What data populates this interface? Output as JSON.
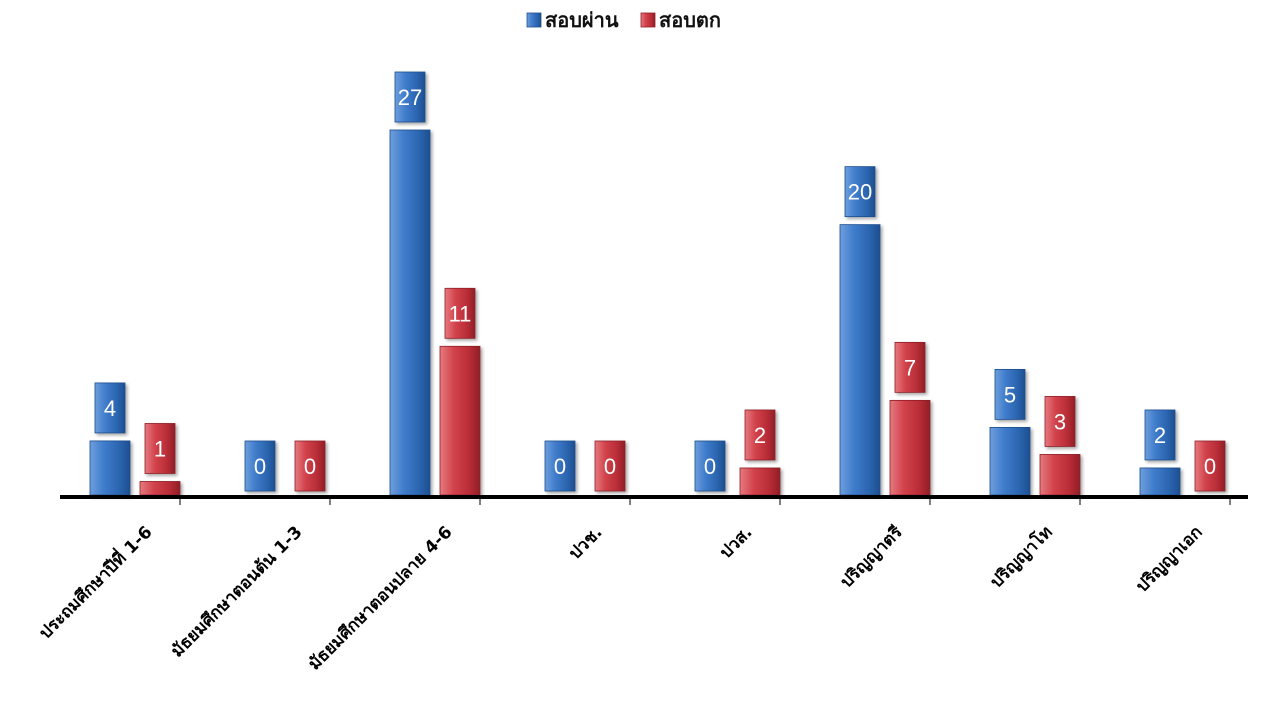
{
  "chart_data": {
    "type": "bar",
    "categories": [
      "ประถมศึกษาปีที่ 1-6",
      "มัธยมศึกษาตอนต้น 1-3",
      "มัธยมศึกษาตอนปลาย 4-6",
      "ปวช.",
      "ปวส.",
      "ปริญญาตรี",
      "ปริญญาโท",
      "ปริญญาเอก"
    ],
    "series": [
      {
        "name": "สอบผ่าน",
        "values": [
          4,
          0,
          27,
          0,
          0,
          20,
          5,
          2
        ],
        "color": "#2E6DB8"
      },
      {
        "name": "สอบตก",
        "values": [
          1,
          0,
          11,
          0,
          2,
          7,
          3,
          0
        ],
        "color": "#C6303A"
      }
    ],
    "ylim": [
      0,
      27
    ],
    "grid": false,
    "legend": "top-center",
    "data_labels": true
  }
}
